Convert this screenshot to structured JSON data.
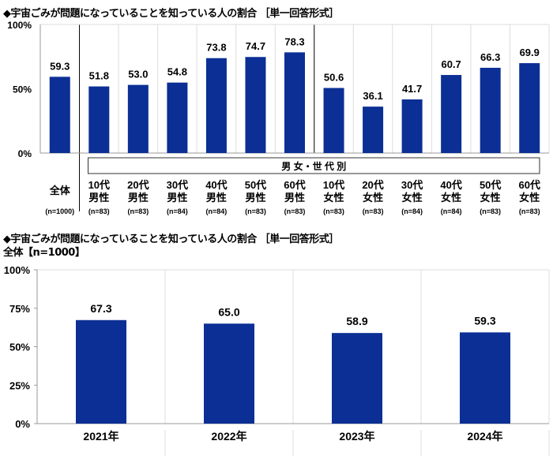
{
  "chart_data": [
    {
      "type": "bar",
      "title": "◆宇宙ごみが問題になっていることを知っている人の割合 ［単一回答形式］",
      "group_label": "男 女・世 代 別",
      "categories": [
        "全体",
        "10代\n男性",
        "20代\n男性",
        "30代\n男性",
        "40代\n男性",
        "50代\n男性",
        "60代\n男性",
        "10代\n女性",
        "20代\n女性",
        "30代\n女性",
        "40代\n女性",
        "50代\n女性",
        "60代\n女性"
      ],
      "category_lines": [
        [
          "全体"
        ],
        [
          "10代",
          "男性"
        ],
        [
          "20代",
          "男性"
        ],
        [
          "30代",
          "男性"
        ],
        [
          "40代",
          "男性"
        ],
        [
          "50代",
          "男性"
        ],
        [
          "60代",
          "男性"
        ],
        [
          "10代",
          "女性"
        ],
        [
          "20代",
          "女性"
        ],
        [
          "30代",
          "女性"
        ],
        [
          "40代",
          "女性"
        ],
        [
          "50代",
          "女性"
        ],
        [
          "60代",
          "女性"
        ]
      ],
      "n_labels": [
        "(n=1000)",
        "(n=83)",
        "(n=83)",
        "(n=84)",
        "(n=84)",
        "(n=83)",
        "(n=83)",
        "(n=83)",
        "(n=83)",
        "(n=84)",
        "(n=84)",
        "(n=83)",
        "(n=83)"
      ],
      "values": [
        59.3,
        51.8,
        53.0,
        54.8,
        73.8,
        74.7,
        78.3,
        50.6,
        36.1,
        41.7,
        60.7,
        66.3,
        69.9
      ],
      "data_labels": [
        "59.3",
        "51.8",
        "53.0",
        "54.8",
        "73.8",
        "74.7",
        "78.3",
        "50.6",
        "36.1",
        "41.7",
        "60.7",
        "66.3",
        "69.9"
      ],
      "yticks": [
        "0%",
        "50%",
        "100%"
      ],
      "ylim": [
        0,
        100
      ],
      "grid": true,
      "bar_color": "#0b2f94"
    },
    {
      "type": "bar",
      "title": "◆宇宙ごみが問題になっていることを知っている人の割合 ［単一回答形式］",
      "subtitle": "全体【n=1000】",
      "categories": [
        "2021年",
        "2022年",
        "2023年",
        "2024年"
      ],
      "values": [
        67.3,
        65.0,
        58.9,
        59.3
      ],
      "data_labels": [
        "67.3",
        "65.0",
        "58.9",
        "59.3"
      ],
      "yticks": [
        "0%",
        "25%",
        "50%",
        "75%",
        "100%"
      ],
      "ylim": [
        0,
        100
      ],
      "grid": true,
      "bar_color": "#0b2f94"
    }
  ]
}
